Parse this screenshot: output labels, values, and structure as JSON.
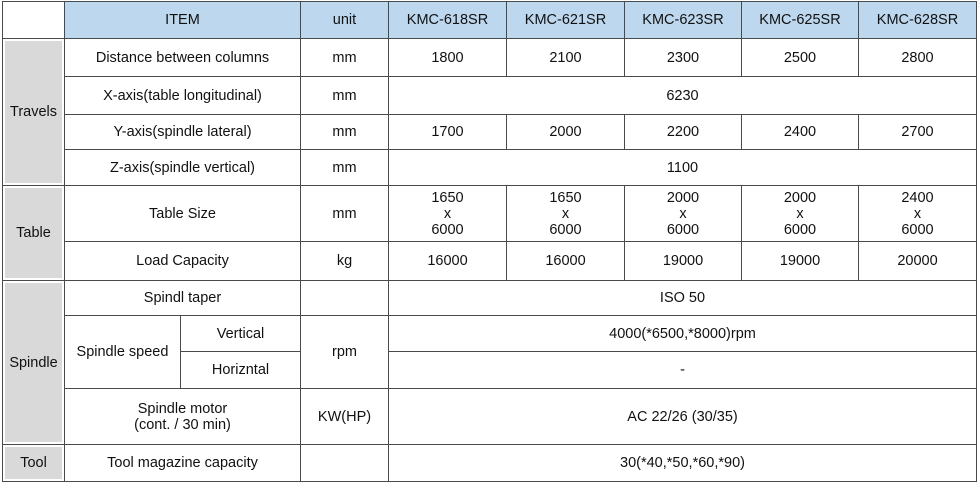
{
  "header": {
    "item": "ITEM",
    "unit": "unit",
    "models": [
      "KMC-618SR",
      "KMC-621SR",
      "KMC-623SR",
      "KMC-625SR",
      "KMC-628SR"
    ]
  },
  "colors": {
    "header_bg": "#bdd7ee",
    "group_bg": "#d9d9d9"
  },
  "groups": {
    "travels": "Travels",
    "table": "Table",
    "spindle": "Spindle",
    "tool": "Tool"
  },
  "rows": {
    "distance": {
      "label": "Distance between columns",
      "unit": "mm",
      "values": [
        "1800",
        "2100",
        "2300",
        "2500",
        "2800"
      ]
    },
    "x_axis": {
      "label": "X-axis(table longitudinal)",
      "unit": "mm",
      "value": "6230"
    },
    "y_axis": {
      "label": "Y-axis(spindle lateral)",
      "unit": "mm",
      "values": [
        "1700",
        "2000",
        "2200",
        "2400",
        "2700"
      ]
    },
    "z_axis": {
      "label": "Z-axis(spindle vertical)",
      "unit": "mm",
      "value": "1100"
    },
    "table_size": {
      "label": "Table Size",
      "unit": "mm",
      "values": [
        [
          "1650",
          "x",
          "6000"
        ],
        [
          "1650",
          "x",
          "6000"
        ],
        [
          "2000",
          "x",
          "6000"
        ],
        [
          "2000",
          "x",
          "6000"
        ],
        [
          "2400",
          "x",
          "6000"
        ]
      ]
    },
    "load": {
      "label": "Load Capacity",
      "unit": "kg",
      "values": [
        "16000",
        "16000",
        "19000",
        "19000",
        "20000"
      ]
    },
    "taper": {
      "label": "Spindl taper",
      "unit": "",
      "value": "ISO 50"
    },
    "speed": {
      "label": "Spindle speed",
      "unit": "rpm",
      "vertical_label": "Vertical",
      "vertical_value": "4000(*6500,*8000)rpm",
      "horizontal_label": "Horizntal",
      "horizontal_value": "-"
    },
    "motor": {
      "label_line1": "Spindle motor",
      "label_line2": "(cont. / 30 min)",
      "unit": "KW(HP)",
      "value": "AC 22/26 (30/35)"
    },
    "magazine": {
      "label": "Tool magazine capacity",
      "unit": "",
      "value": "30(*40,*50,*60,*90)"
    }
  }
}
